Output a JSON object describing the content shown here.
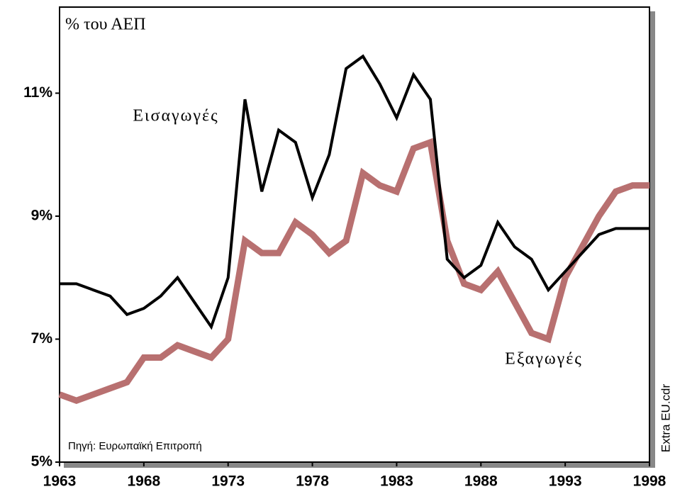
{
  "chart_data": {
    "type": "line",
    "ylabel": "% του ΑΕΠ",
    "source": "Πηγή: Ευρωπαϊκή Επιτροπή",
    "file_note": "Extra EU.cdr",
    "x": [
      1963,
      1964,
      1965,
      1966,
      1967,
      1968,
      1969,
      1970,
      1971,
      1972,
      1973,
      1974,
      1975,
      1976,
      1977,
      1978,
      1979,
      1980,
      1981,
      1982,
      1983,
      1984,
      1985,
      1986,
      1987,
      1988,
      1989,
      1990,
      1991,
      1992,
      1993,
      1994,
      1995,
      1996,
      1997,
      1998
    ],
    "series": [
      {
        "name": "Εισαγωγές",
        "color": "#000000",
        "values": [
          7.9,
          7.9,
          7.8,
          7.7,
          7.4,
          7.5,
          7.7,
          8.0,
          7.6,
          7.2,
          8.0,
          10.9,
          9.4,
          10.4,
          10.2,
          9.3,
          10.0,
          11.4,
          11.6,
          11.15,
          10.6,
          11.3,
          10.9,
          8.3,
          8.0,
          8.2,
          8.9,
          8.5,
          8.3,
          7.8,
          8.1,
          8.4,
          8.7,
          8.8,
          8.8,
          8.8
        ]
      },
      {
        "name": "Εξαγωγές",
        "color": "#b87070",
        "values": [
          6.1,
          6.0,
          6.1,
          6.2,
          6.3,
          6.7,
          6.7,
          6.9,
          6.8,
          6.7,
          7.0,
          8.6,
          8.4,
          8.4,
          8.9,
          8.7,
          8.4,
          8.6,
          9.7,
          9.5,
          9.4,
          10.1,
          10.2,
          8.6,
          7.9,
          7.8,
          8.1,
          7.6,
          7.1,
          7.0,
          8.0,
          8.5,
          9.0,
          9.4,
          9.5,
          9.5
        ]
      }
    ],
    "xlim": [
      1963,
      1998
    ],
    "xticks": [
      1963,
      1968,
      1973,
      1978,
      1983,
      1988,
      1993,
      1998
    ],
    "ylim": [
      5,
      12.4
    ],
    "yticks": [
      {
        "value": 5,
        "label": "5%"
      },
      {
        "value": 7,
        "label": "7%"
      },
      {
        "value": 9,
        "label": "9%"
      },
      {
        "value": 11,
        "label": "11%"
      }
    ]
  }
}
